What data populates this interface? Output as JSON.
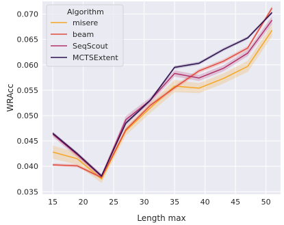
{
  "chart_data": {
    "type": "line",
    "xlabel": "Length max",
    "ylabel": "WRAcc",
    "xlim": [
      13.3,
      52.4
    ],
    "ylim": [
      0.0345,
      0.0725
    ],
    "xticks": [
      15,
      20,
      25,
      30,
      35,
      40,
      45,
      50
    ],
    "yticks": [
      0.035,
      0.04,
      0.045,
      0.05,
      0.055,
      0.06,
      0.065,
      0.07
    ],
    "ytick_labels": [
      "0.035",
      "0.040",
      "0.045",
      "0.050",
      "0.055",
      "0.060",
      "0.065",
      "0.070"
    ],
    "grid": true,
    "legend": {
      "title": "Algorithm",
      "placement": "top-left"
    },
    "series": [
      {
        "name": "misere",
        "color": "#f5a623",
        "x": [
          15,
          19,
          23,
          27,
          31,
          35,
          39,
          43,
          47,
          51
        ],
        "y": [
          0.0428,
          0.0415,
          0.0375,
          0.047,
          0.0515,
          0.0558,
          0.0554,
          0.0573,
          0.0597,
          0.0668
        ],
        "lower": [
          0.0415,
          0.0403,
          0.0367,
          0.0461,
          0.0505,
          0.0546,
          0.0544,
          0.0563,
          0.0586,
          0.0656
        ],
        "upper": [
          0.0441,
          0.0427,
          0.0383,
          0.0479,
          0.0525,
          0.057,
          0.0564,
          0.0583,
          0.0608,
          0.068
        ]
      },
      {
        "name": "beam",
        "color": "#e24a3b",
        "x": [
          15,
          19,
          23,
          27,
          31,
          35,
          39,
          43,
          47,
          51
        ],
        "y": [
          0.0403,
          0.0401,
          0.0378,
          0.0472,
          0.052,
          0.0555,
          0.0588,
          0.0607,
          0.0633,
          0.0712
        ],
        "lower": [
          0.04,
          0.0398,
          0.0375,
          0.0468,
          0.0516,
          0.0551,
          0.0584,
          0.0603,
          0.0629,
          0.0708
        ],
        "upper": [
          0.0406,
          0.0404,
          0.0381,
          0.0476,
          0.0524,
          0.0559,
          0.0592,
          0.0611,
          0.0637,
          0.0716
        ]
      },
      {
        "name": "SeqScout",
        "color": "#b1306b",
        "x": [
          15,
          19,
          23,
          27,
          31,
          35,
          39,
          43,
          47,
          51
        ],
        "y": [
          0.0463,
          0.0423,
          0.038,
          0.0492,
          0.053,
          0.0583,
          0.0574,
          0.0593,
          0.0623,
          0.0688
        ],
        "lower": [
          0.0458,
          0.0418,
          0.0375,
          0.0485,
          0.0524,
          0.0577,
          0.0568,
          0.0587,
          0.0617,
          0.068
        ],
        "upper": [
          0.0468,
          0.0428,
          0.0385,
          0.0499,
          0.0536,
          0.0589,
          0.058,
          0.0599,
          0.0629,
          0.0696
        ]
      },
      {
        "name": "MCTSExtent",
        "color": "#2d0f4e",
        "x": [
          15,
          19,
          23,
          27,
          31,
          35,
          39,
          43,
          47,
          51
        ],
        "y": [
          0.0465,
          0.0425,
          0.0381,
          0.0485,
          0.053,
          0.0595,
          0.0603,
          0.063,
          0.0653,
          0.0703
        ],
        "lower": [
          0.0462,
          0.0422,
          0.0378,
          0.0481,
          0.0527,
          0.0592,
          0.06,
          0.0627,
          0.065,
          0.07
        ],
        "upper": [
          0.0468,
          0.0428,
          0.0384,
          0.0489,
          0.0533,
          0.0598,
          0.0606,
          0.0633,
          0.0656,
          0.0706
        ]
      }
    ]
  }
}
